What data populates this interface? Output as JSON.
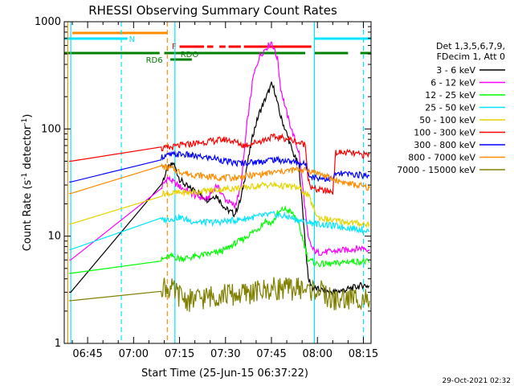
{
  "chart_data": {
    "type": "line",
    "title": "RHESSI Observing Summary Count Rates",
    "xlabel": "Start Time (25-Jun-15 06:37:22)",
    "ylabel_main": "Count Rate (s",
    "ylabel_sup": "-1",
    "ylabel_mid": " detector",
    "ylabel_sup2": "-1",
    "ylabel_end": ")",
    "yscale": "log",
    "ylim": [
      1,
      1000
    ],
    "xlim_minutes": [
      37.37,
      137.5
    ],
    "y_ticks": [
      {
        "value": 1,
        "label": "1"
      },
      {
        "value": 10,
        "label": "10"
      },
      {
        "value": 100,
        "label": "100"
      },
      {
        "value": 1000,
        "label": "1000"
      }
    ],
    "x_ticks": [
      {
        "minute": 45,
        "label": "06:45"
      },
      {
        "minute": 60,
        "label": "07:00"
      },
      {
        "minute": 75,
        "label": "07:15"
      },
      {
        "minute": 90,
        "label": "07:30"
      },
      {
        "minute": 105,
        "label": "07:45"
      },
      {
        "minute": 120,
        "label": "08:00"
      },
      {
        "minute": 135,
        "label": "08:15"
      }
    ],
    "legend": {
      "header": [
        "Det 1,3,5,6,7,9,",
        "FDecim 1, Att 0"
      ],
      "placement": "right"
    },
    "flags": [
      {
        "label": "N",
        "color": "#00e5ff"
      },
      {
        "label": "F",
        "color": "#ff0000"
      },
      {
        "label": "RDO",
        "color": "#008000"
      },
      {
        "label": "RD6",
        "color": "#008000"
      }
    ],
    "footer_timestamp": "29-Oct-2021 02:32",
    "series": [
      {
        "name": "3 - 6 keV",
        "color": "#000000",
        "x": [
          39,
          39.5,
          69,
          71,
          73,
          75,
          78,
          80,
          84,
          87,
          90,
          93,
          95,
          97,
          99,
          101,
          103,
          104,
          105,
          106,
          107,
          108,
          110,
          112,
          114,
          117,
          118.5,
          120,
          125,
          130,
          135,
          137
        ],
        "y": [
          3.0,
          3.0,
          30,
          42,
          48,
          34,
          28,
          27,
          22,
          24,
          18,
          16,
          22,
          45,
          90,
          140,
          190,
          220,
          260,
          230,
          170,
          130,
          90,
          60,
          45,
          4.0,
          3.3,
          3.2,
          3.0,
          3.2,
          3.5,
          3.4
        ]
      },
      {
        "name": "6 - 12 keV",
        "color": "#ff00ff",
        "x": [
          39,
          39.5,
          69,
          71,
          73,
          75,
          78,
          80,
          84,
          87,
          90,
          93,
          95,
          97,
          99,
          101,
          103,
          104,
          105,
          106,
          107,
          108,
          110,
          112,
          114,
          117,
          118.5,
          120,
          125,
          130,
          135,
          137
        ],
        "y": [
          6.0,
          6.0,
          28,
          35,
          32,
          29,
          26,
          24,
          22,
          30,
          22,
          19,
          28,
          110,
          300,
          470,
          560,
          600,
          650,
          540,
          450,
          240,
          140,
          90,
          60,
          9.5,
          7.5,
          7.0,
          7.2,
          7.5,
          7.8,
          7.5
        ]
      },
      {
        "name": "12 - 25 keV",
        "color": "#00ff00",
        "x": [
          39,
          39.5,
          69,
          72,
          75,
          78,
          81,
          84,
          87,
          90,
          93,
          96,
          99,
          101,
          103,
          105,
          107,
          109,
          111,
          113,
          115,
          117,
          120,
          125,
          130,
          135,
          137
        ],
        "y": [
          4.5,
          4.5,
          6.0,
          6.5,
          6.2,
          6.3,
          6.5,
          6.8,
          7.0,
          7.5,
          8.5,
          9.5,
          11,
          12,
          14,
          13,
          16,
          18,
          17,
          15,
          10,
          6.0,
          5.5,
          5.5,
          5.8,
          5.8,
          5.7
        ]
      },
      {
        "name": "25 - 50 keV",
        "color": "#00e5ff",
        "x": [
          39,
          39.5,
          69,
          72,
          75,
          78,
          81,
          84,
          87,
          90,
          93,
          96,
          99,
          102,
          105,
          108,
          111,
          114,
          117,
          120,
          125,
          130,
          135,
          137
        ],
        "y": [
          7.5,
          7.5,
          14,
          14.5,
          15,
          14,
          13.5,
          13.5,
          13.5,
          13.8,
          14,
          14.5,
          15,
          15.5,
          16,
          15.5,
          15,
          14,
          13.5,
          13,
          12.5,
          12,
          11.5,
          11
        ]
      },
      {
        "name": "50 - 100 keV",
        "color": "#e5d400",
        "x": [
          39,
          39.5,
          69,
          72,
          75,
          78,
          81,
          84,
          87,
          90,
          93,
          96,
          99,
          102,
          105,
          108,
          111,
          114,
          117,
          120,
          125,
          130,
          135,
          137
        ],
        "y": [
          13,
          13,
          25,
          25,
          25.5,
          25.5,
          26,
          26.5,
          27,
          27.5,
          28,
          28.5,
          29,
          30,
          30,
          29.5,
          29,
          28,
          24,
          15,
          14,
          13.5,
          13,
          13
        ]
      },
      {
        "name": "100 - 300 keV",
        "color": "#ff0000",
        "x": [
          39,
          39.5,
          69,
          72,
          75,
          78,
          81,
          84,
          87,
          90,
          93,
          96,
          99,
          102,
          105,
          108,
          111,
          114,
          116,
          117,
          118,
          120,
          125,
          126,
          130,
          135,
          137
        ],
        "y": [
          50,
          50,
          65,
          67,
          70,
          72,
          74,
          76,
          78,
          80,
          76,
          70,
          74,
          78,
          84,
          83,
          80,
          74,
          72,
          35,
          28,
          27,
          26,
          60,
          60,
          57,
          58
        ]
      },
      {
        "name": "300 - 800 keV",
        "color": "#0000ff",
        "x": [
          39,
          39.5,
          69,
          72,
          75,
          78,
          81,
          84,
          87,
          90,
          93,
          96,
          99,
          102,
          105,
          108,
          111,
          114,
          116,
          117,
          118,
          120,
          125,
          126,
          130,
          135,
          137
        ],
        "y": [
          32,
          32,
          55,
          57,
          58,
          57,
          55,
          54,
          53,
          50,
          48,
          48,
          49,
          50,
          52,
          51,
          50,
          48,
          47,
          40,
          36,
          35,
          34,
          38,
          38,
          37,
          37
        ]
      },
      {
        "name": "800 - 7000 keV",
        "color": "#ff8c00",
        "x": [
          39,
          39.5,
          69,
          72,
          75,
          78,
          81,
          84,
          87,
          90,
          93,
          96,
          99,
          102,
          105,
          108,
          111,
          114,
          117,
          120,
          125,
          130,
          135,
          137
        ],
        "y": [
          25,
          25,
          45,
          43,
          40,
          38,
          37,
          36,
          35.5,
          35,
          35,
          36,
          37,
          38,
          39,
          40,
          41,
          42,
          41,
          39,
          34,
          31,
          29,
          28
        ]
      },
      {
        "name": "7000 - 15000 keV",
        "color": "#808000",
        "x": [
          39,
          39.5,
          69,
          72,
          75,
          78,
          81,
          84,
          87,
          90,
          93,
          96,
          99,
          102,
          105,
          108,
          111,
          114,
          117,
          120,
          125,
          130,
          135,
          137
        ],
        "y": [
          2.5,
          2.5,
          3.5,
          3.2,
          2.8,
          2.5,
          2.6,
          2.7,
          2.8,
          2.9,
          2.8,
          2.9,
          3.0,
          3.1,
          3.2,
          3.3,
          3.2,
          3.3,
          3.1,
          3.2,
          2.5,
          2.6,
          2.7,
          2.5
        ]
      }
    ]
  }
}
